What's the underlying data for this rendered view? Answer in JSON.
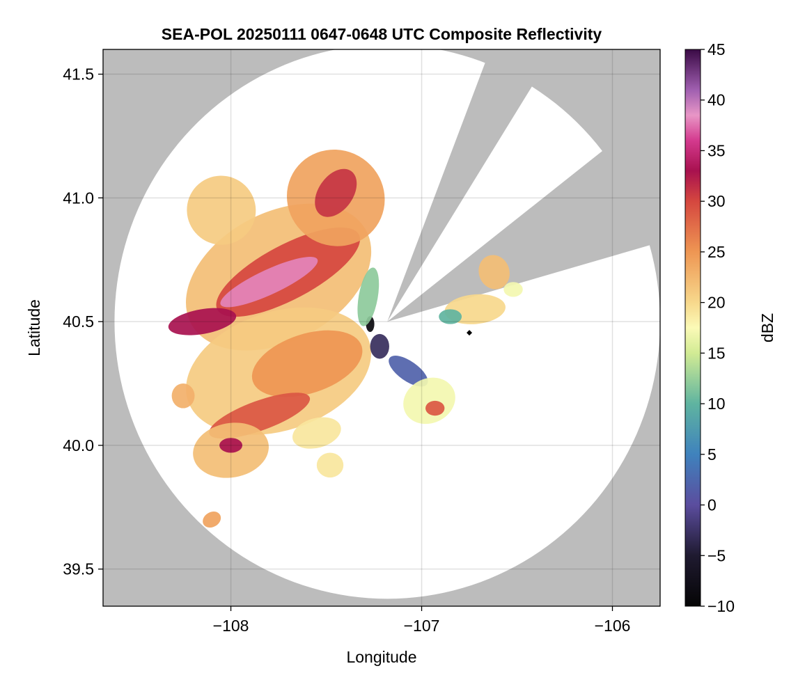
{
  "chart_data": {
    "type": "heatmap",
    "title": "SEA-POL 20250111 0647-0648 UTC Composite Reflectivity",
    "xlabel": "Longitude",
    "ylabel": "Latitude",
    "xlim": [
      -108.67,
      -105.75
    ],
    "ylim": [
      39.35,
      41.6
    ],
    "x_ticks": [
      -108,
      -107,
      -106
    ],
    "x_tick_labels": [
      "−108",
      "−107",
      "−106"
    ],
    "y_ticks": [
      39.5,
      40.0,
      40.5,
      41.0,
      41.5
    ],
    "y_tick_labels": [
      "39.5",
      "40.0",
      "40.5",
      "41.0",
      "41.5"
    ],
    "grid": true,
    "radar_center": {
      "lon": -107.18,
      "lat": 40.5
    },
    "radar_range_deg": {
      "lon": 1.43,
      "lat": 1.12
    },
    "beam_blockage_sectors_deg_from_north": [
      [
        21,
        32
      ],
      [
        52,
        74
      ]
    ],
    "background_color": "#bcbcbc",
    "coverage_color": "#ffffff",
    "colorbar": {
      "label": "dBZ",
      "range": [
        -10,
        45
      ],
      "ticks": [
        -10,
        -5,
        0,
        5,
        10,
        15,
        20,
        25,
        30,
        35,
        40,
        45
      ],
      "tick_labels": [
        "−10",
        "−5",
        "0",
        "5",
        "10",
        "15",
        "20",
        "25",
        "30",
        "35",
        "40",
        "45"
      ],
      "colormap": [
        {
          "value": -10,
          "color": "#050505"
        },
        {
          "value": -5,
          "color": "#1f1a30"
        },
        {
          "value": 0,
          "color": "#5b4d9e"
        },
        {
          "value": 5,
          "color": "#3f82bd"
        },
        {
          "value": 10,
          "color": "#5fb4a0"
        },
        {
          "value": 15,
          "color": "#d2eb94"
        },
        {
          "value": 17.5,
          "color": "#fbfab7"
        },
        {
          "value": 20,
          "color": "#f7d88c"
        },
        {
          "value": 25,
          "color": "#ee9653"
        },
        {
          "value": 30,
          "color": "#d5473f"
        },
        {
          "value": 33,
          "color": "#a8114f"
        },
        {
          "value": 36,
          "color": "#d43a8e"
        },
        {
          "value": 38.5,
          "color": "#e896c6"
        },
        {
          "value": 41,
          "color": "#a05fb0"
        },
        {
          "value": 45,
          "color": "#3a0a45"
        }
      ]
    },
    "echo_regions": [
      {
        "name": "northwest-band-outer",
        "lon": -107.75,
        "lat": 40.68,
        "lon_radius": 0.52,
        "lat_radius": 0.26,
        "rotation_deg": -28,
        "dbz": 22
      },
      {
        "name": "northwest-band-core",
        "lon": -107.7,
        "lat": 40.7,
        "lon_radius": 0.42,
        "lat_radius": 0.11,
        "rotation_deg": -28,
        "dbz": 30
      },
      {
        "name": "northwest-band-peak",
        "lon": -107.8,
        "lat": 40.66,
        "lon_radius": 0.28,
        "lat_radius": 0.05,
        "rotation_deg": -25,
        "dbz": 38
      },
      {
        "name": "north-fingers",
        "lon": -107.45,
        "lat": 41.0,
        "lon_radius": 0.25,
        "lat_radius": 0.2,
        "rotation_deg": -55,
        "dbz": 24
      },
      {
        "name": "north-fingers-core",
        "lon": -107.45,
        "lat": 41.02,
        "lon_radius": 0.14,
        "lat_radius": 0.07,
        "rotation_deg": -55,
        "dbz": 31
      },
      {
        "name": "far-northwest-edge",
        "lon": -108.05,
        "lat": 40.95,
        "lon_radius": 0.18,
        "lat_radius": 0.14,
        "rotation_deg": -35,
        "dbz": 21
      },
      {
        "name": "west-core",
        "lon": -108.15,
        "lat": 40.5,
        "lon_radius": 0.18,
        "lat_radius": 0.05,
        "rotation_deg": -10,
        "dbz": 33
      },
      {
        "name": "southwest-field",
        "lon": -107.75,
        "lat": 40.3,
        "lon_radius": 0.5,
        "lat_radius": 0.24,
        "rotation_deg": -18,
        "dbz": 21
      },
      {
        "name": "southwest-field-inner",
        "lon": -107.6,
        "lat": 40.33,
        "lon_radius": 0.3,
        "lat_radius": 0.12,
        "rotation_deg": -18,
        "dbz": 25
      },
      {
        "name": "south-west-band",
        "lon": -107.85,
        "lat": 40.12,
        "lon_radius": 0.28,
        "lat_radius": 0.06,
        "rotation_deg": -20,
        "dbz": 29
      },
      {
        "name": "south-west-lobe",
        "lon": -108.0,
        "lat": 39.98,
        "lon_radius": 0.2,
        "lat_radius": 0.11,
        "rotation_deg": -10,
        "dbz": 22
      },
      {
        "name": "south-west-lobe-core",
        "lon": -108.0,
        "lat": 40.0,
        "lon_radius": 0.06,
        "lat_radius": 0.03,
        "rotation_deg": 0,
        "dbz": 33
      },
      {
        "name": "far-west-cell",
        "lon": -108.25,
        "lat": 40.2,
        "lon_radius": 0.06,
        "lat_radius": 0.05,
        "rotation_deg": 0,
        "dbz": 23
      },
      {
        "name": "far-southwest-cell",
        "lon": -108.1,
        "lat": 39.7,
        "lon_radius": 0.05,
        "lat_radius": 0.03,
        "rotation_deg": -30,
        "dbz": 24
      },
      {
        "name": "south-center-cell",
        "lon": -107.55,
        "lat": 40.05,
        "lon_radius": 0.13,
        "lat_radius": 0.06,
        "rotation_deg": -15,
        "dbz": 19
      },
      {
        "name": "south-small-cell",
        "lon": -107.48,
        "lat": 39.92,
        "lon_radius": 0.07,
        "lat_radius": 0.05,
        "rotation_deg": 0,
        "dbz": 19
      },
      {
        "name": "near-radar-low",
        "lon": -107.22,
        "lat": 40.4,
        "lon_radius": 0.05,
        "lat_radius": 0.05,
        "rotation_deg": 0,
        "dbz": -3
      },
      {
        "name": "near-radar-clutter",
        "lon": -107.27,
        "lat": 40.49,
        "lon_radius": 0.022,
        "lat_radius": 0.032,
        "rotation_deg": 0,
        "dbz": -9
      },
      {
        "name": "near-radar-ring",
        "lon": -107.28,
        "lat": 40.6,
        "lon_radius": 0.05,
        "lat_radius": 0.12,
        "rotation_deg": 10,
        "dbz": 12
      },
      {
        "name": "southeast-tail",
        "lon": -107.07,
        "lat": 40.3,
        "lon_radius": 0.12,
        "lat_radius": 0.04,
        "rotation_deg": 35,
        "dbz": 2
      },
      {
        "name": "southeast-cell",
        "lon": -106.96,
        "lat": 40.18,
        "lon_radius": 0.14,
        "lat_radius": 0.09,
        "rotation_deg": -25,
        "dbz": 17
      },
      {
        "name": "southeast-cell-core",
        "lon": -106.93,
        "lat": 40.15,
        "lon_radius": 0.05,
        "lat_radius": 0.03,
        "rotation_deg": 0,
        "dbz": 29
      },
      {
        "name": "east-cell",
        "lon": -106.72,
        "lat": 40.55,
        "lon_radius": 0.16,
        "lat_radius": 0.06,
        "rotation_deg": -5,
        "dbz": 20
      },
      {
        "name": "east-cell-edge",
        "lon": -106.85,
        "lat": 40.52,
        "lon_radius": 0.06,
        "lat_radius": 0.03,
        "rotation_deg": 0,
        "dbz": 10
      },
      {
        "name": "northeast-cell",
        "lon": -106.62,
        "lat": 40.7,
        "lon_radius": 0.08,
        "lat_radius": 0.07,
        "rotation_deg": -20,
        "dbz": 22
      },
      {
        "name": "east-small-cell",
        "lon": -106.52,
        "lat": 40.63,
        "lon_radius": 0.05,
        "lat_radius": 0.03,
        "rotation_deg": 0,
        "dbz": 17
      }
    ]
  }
}
